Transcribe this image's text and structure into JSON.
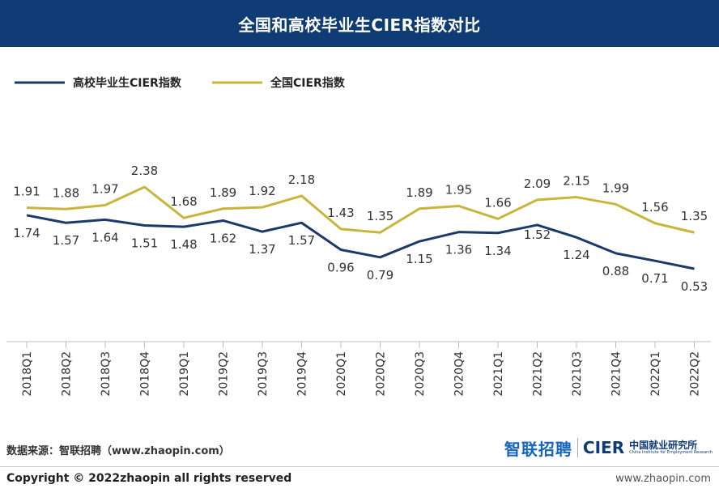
{
  "chart_data": {
    "type": "line",
    "title": "全国和高校毕业生CIER指数对比",
    "categories": [
      "2018Q1",
      "2018Q2",
      "2018Q3",
      "2018Q4",
      "2019Q1",
      "2019Q2",
      "2019Q3",
      "2019Q4",
      "2020Q1",
      "2020Q2",
      "2020Q3",
      "2020Q4",
      "2021Q1",
      "2021Q2",
      "2021Q3",
      "2021Q4",
      "2022Q1",
      "2022Q2"
    ],
    "series": [
      {
        "name": "高校毕业生CIER指数",
        "color": "#1a3a6b",
        "values": [
          1.74,
          1.57,
          1.64,
          1.51,
          1.48,
          1.62,
          1.37,
          1.57,
          0.96,
          0.79,
          1.15,
          1.36,
          1.34,
          1.52,
          1.24,
          0.88,
          0.71,
          0.53
        ],
        "labels": [
          "1.74",
          "1.57",
          "1.64",
          "1.51",
          "1.48",
          "1.62",
          "1.37",
          "1.57",
          "0.96",
          "0.79",
          "1.15",
          "1.36",
          "1.34",
          "1.52",
          "1.24",
          "0.88",
          "0.71",
          "0.53"
        ]
      },
      {
        "name": "全国CIER指数",
        "color": "#c9b43c",
        "values": [
          1.91,
          1.88,
          1.97,
          2.38,
          1.68,
          1.89,
          1.92,
          2.18,
          1.43,
          1.35,
          1.89,
          1.95,
          1.66,
          2.09,
          2.15,
          1.99,
          1.56,
          1.35
        ],
        "labels": [
          "1.91",
          "1.88",
          "1.97",
          "2.38",
          "1.68",
          "1.89",
          "1.92",
          "2.18",
          "1.43",
          "1.35",
          "1.89",
          "1.95",
          "1.66",
          "2.09",
          "2.15",
          "1.99",
          "1.56",
          "1.35"
        ]
      }
    ],
    "legend_position": "top-left",
    "grid": false
  },
  "footer": {
    "source": "数据来源：智联招聘（www.zhaopin.com）",
    "copyright": "Copyright ©  2022zhaopin all rights reserved",
    "website": "www.zhaopin.com"
  },
  "logos": {
    "zhilian": "智联招聘",
    "cier": "CIER",
    "cier_cn": "中国就业研究所",
    "cier_en": "China Institute for Employment Research"
  }
}
